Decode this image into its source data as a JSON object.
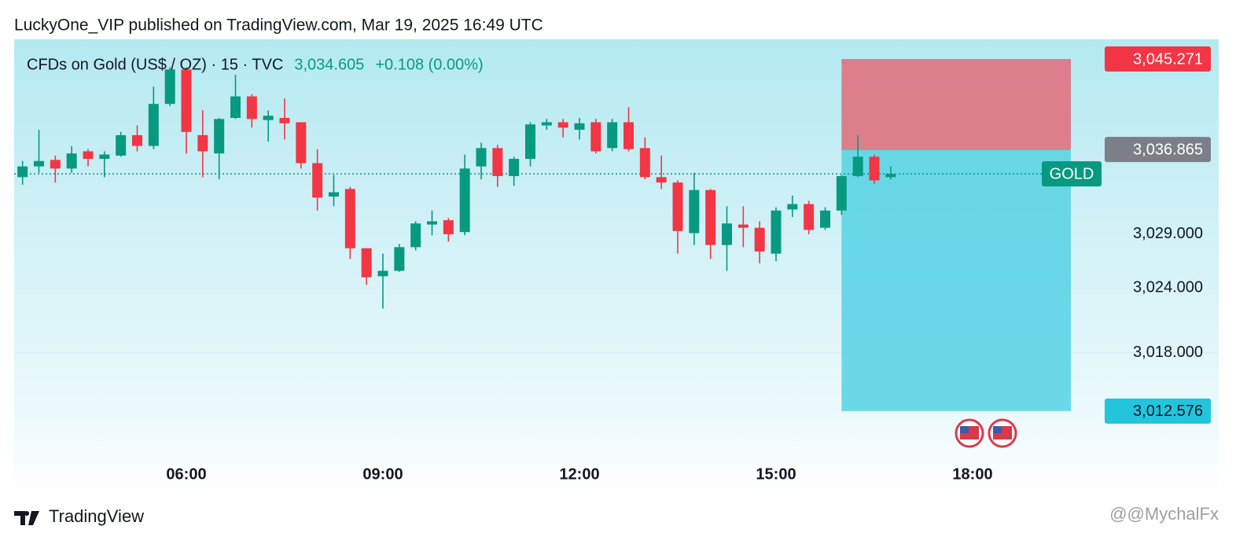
{
  "chart_data": {
    "type": "candlestick",
    "attribution": "LuckyOne_VIP published on TradingView.com, Mar 19, 2025 16:49 UTC",
    "symbol": "CFDs on Gold (US$ / OZ) · 15 · TVC",
    "last": "3,034.605",
    "change": "+0.108 (0.00%)",
    "x": [
      3.5,
      3.75,
      4,
      4.25,
      4.5,
      4.75,
      5,
      5.25,
      5.5,
      5.75,
      6,
      6.25,
      6.5,
      6.75,
      7,
      7.25,
      7.5,
      7.75,
      8,
      8.25,
      8.5,
      8.75,
      9,
      9.25,
      9.5,
      9.75,
      10,
      10.25,
      10.5,
      10.75,
      11,
      11.25,
      11.5,
      11.75,
      12,
      12.25,
      12.5,
      12.75,
      13,
      13.25,
      13.5,
      13.75,
      14,
      14.25,
      14.5,
      14.75,
      15,
      15.25,
      15.5,
      15.75,
      16,
      16.25,
      16.5,
      16.75
    ],
    "open": [
      3034.3,
      3035.3,
      3035.9,
      3035.1,
      3036.7,
      3036.0,
      3036.3,
      3038.2,
      3037.2,
      3041.1,
      3044.3,
      3038.2,
      3036.5,
      3039.8,
      3041.8,
      3039.6,
      3039.8,
      3039.4,
      3035.6,
      3032.5,
      3033.2,
      3027.7,
      3025.1,
      3025.6,
      3027.8,
      3029.9,
      3030.3,
      3029.2,
      3035.3,
      3037.0,
      3034.4,
      3036.0,
      3039.1,
      3039.4,
      3038.7,
      3039.4,
      3037.0,
      3039.4,
      3037.0,
      3034.3,
      3033.8,
      3029.1,
      3033.1,
      3028.0,
      3029.9,
      3029.6,
      3027.2,
      3031.3,
      3031.8,
      3029.6,
      3031.2,
      3034.4,
      3036.2,
      3034.3
    ],
    "high": [
      3035.8,
      3038.7,
      3036.3,
      3037.2,
      3036.9,
      3036.7,
      3038.5,
      3039.1,
      3042.7,
      3044.5,
      3044.5,
      3040.5,
      3039.8,
      3043.8,
      3042.0,
      3040.5,
      3041.6,
      3039.4,
      3036.9,
      3034.5,
      3033.4,
      3027.7,
      3027.2,
      3028.1,
      3030.2,
      3031.2,
      3030.5,
      3036.4,
      3037.5,
      3037.3,
      3036.2,
      3039.4,
      3039.7,
      3039.7,
      3039.8,
      3039.7,
      3039.7,
      3040.8,
      3038.0,
      3036.3,
      3034.0,
      3034.7,
      3033.2,
      3031.6,
      3031.6,
      3030.2,
      3031.5,
      3032.6,
      3032.1,
      3031.5,
      3034.5,
      3038.2,
      3036.4,
      3035.3
    ],
    "low": [
      3033.6,
      3034.7,
      3033.8,
      3034.7,
      3035.3,
      3034.3,
      3036.2,
      3036.7,
      3036.9,
      3040.9,
      3036.5,
      3034.3,
      3034.1,
      3039.7,
      3038.9,
      3037.6,
      3037.8,
      3035.1,
      3031.2,
      3031.6,
      3026.7,
      3024.3,
      3022.1,
      3025.5,
      3027.5,
      3028.9,
      3028.3,
      3028.9,
      3034.1,
      3033.4,
      3033.5,
      3035.3,
      3038.7,
      3038.0,
      3037.8,
      3036.5,
      3036.7,
      3036.7,
      3034.1,
      3033.2,
      3027.2,
      3028.0,
      3026.7,
      3025.6,
      3027.8,
      3026.3,
      3026.5,
      3030.6,
      3029.0,
      3029.4,
      3030.8,
      3034.3,
      3033.7,
      3034.1
    ],
    "close": [
      3035.3,
      3035.8,
      3035.1,
      3036.5,
      3036.0,
      3036.4,
      3038.2,
      3037.2,
      3041.1,
      3044.3,
      3038.5,
      3036.7,
      3039.7,
      3041.8,
      3039.7,
      3040.0,
      3039.3,
      3035.6,
      3032.4,
      3032.9,
      3027.7,
      3025.0,
      3025.6,
      3027.8,
      3030.0,
      3030.2,
      3029.0,
      3035.1,
      3037.0,
      3034.4,
      3036.0,
      3039.2,
      3039.4,
      3038.9,
      3039.3,
      3036.7,
      3039.4,
      3036.9,
      3034.3,
      3033.8,
      3029.3,
      3033.1,
      3028.0,
      3030.0,
      3029.6,
      3027.4,
      3031.2,
      3031.8,
      3029.4,
      3031.2,
      3034.4,
      3036.2,
      3034.0,
      3034.6
    ],
    "up_color": "#089981",
    "down_color": "#f23645",
    "xlim": [
      3.372,
      19.956
    ],
    "xticks": [
      {
        "value": 6,
        "label": "06:00"
      },
      {
        "value": 9,
        "label": "09:00"
      },
      {
        "value": 12,
        "label": "12:00"
      },
      {
        "value": 15,
        "label": "15:00"
      },
      {
        "value": 18,
        "label": "18:00"
      }
    ],
    "ylim": [
      3009.5,
      3047.1
    ],
    "yticks": [
      {
        "value": 3018,
        "label": "3,018.000"
      },
      {
        "value": 3024,
        "label": "3,024.000"
      },
      {
        "value": 3029,
        "label": "3,029.000"
      }
    ],
    "grid": true,
    "current": {
      "value": 3034.605,
      "label": "GOLD",
      "color": "#089981"
    },
    "position": {
      "x_start": 16.0,
      "x_end": 19.5,
      "stop": {
        "value": 3045.271,
        "label": "3,045.271",
        "color": "#f23645"
      },
      "entry": {
        "value": 3036.865,
        "label": "3,036.865",
        "color": "#7c7f88"
      },
      "target": {
        "value": 3012.576,
        "label": "3,012.576",
        "color": "#22c5dc"
      }
    },
    "brand": "TradingView",
    "watermark": "@@MychalFx"
  }
}
